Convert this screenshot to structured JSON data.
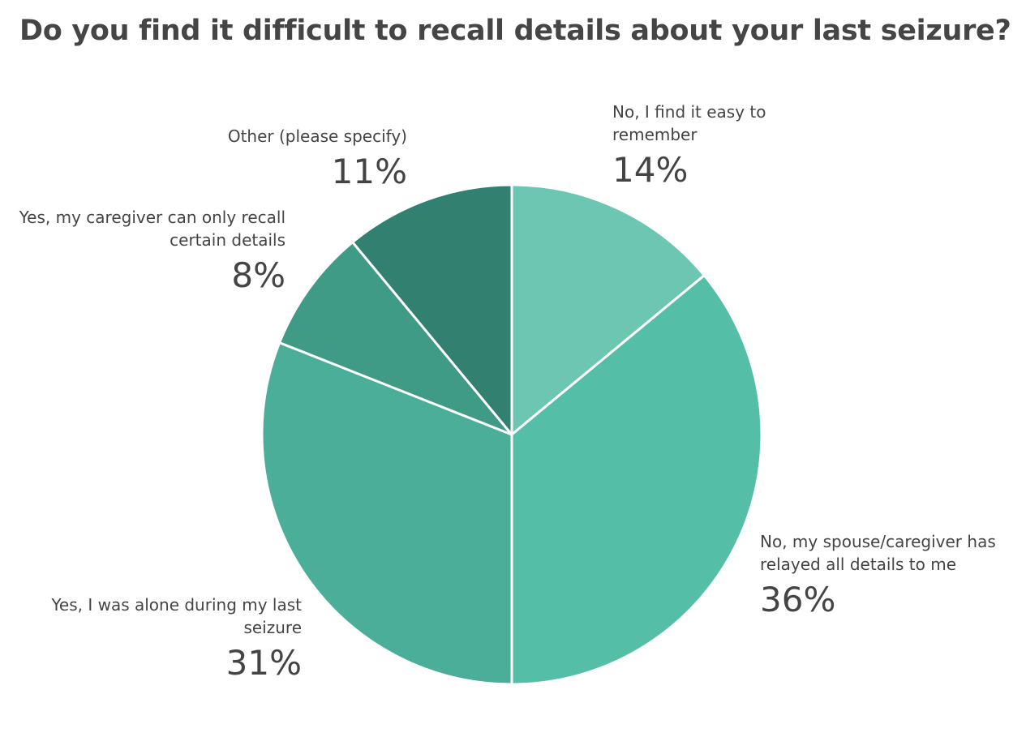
{
  "chart_data": {
    "type": "pie",
    "title": "Do you find it difficult to recall details about your last seizure?",
    "categories": [
      "No, I find it easy to remember",
      "No, my spouse/caregiver has relayed all details to me",
      "Yes, I was alone during my last seizure",
      "Yes, my caregiver can only recall certain details",
      "Other (please specify)"
    ],
    "values": [
      14,
      36,
      31,
      8,
      11
    ],
    "value_labels": [
      "14%",
      "36%",
      "31%",
      "8%",
      "11%"
    ],
    "colors": [
      "#6cc6b1",
      "#55bea7",
      "#4aae98",
      "#3f9a86",
      "#32806f"
    ]
  }
}
